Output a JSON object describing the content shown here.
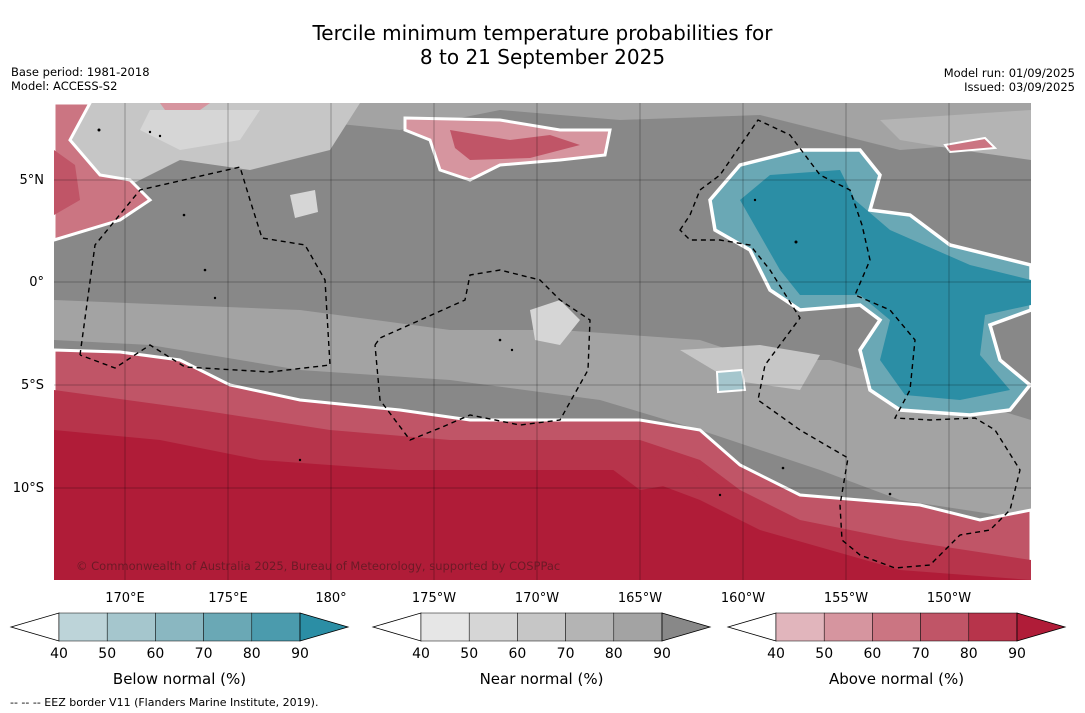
{
  "title_line1": "Tercile minimum temperature probabilities for",
  "title_line2": "8 to 21 September 2025",
  "meta_left": {
    "base_period": "Base period: 1981-2018",
    "model": "Model: ACCESS-S2"
  },
  "meta_right": {
    "model_run": "Model run: 01/09/2025",
    "issued": "Issued: 03/09/2025"
  },
  "lat_ticks": [
    "5°N",
    "0°",
    "5°S",
    "10°S"
  ],
  "lon_ticks": [
    "170°E",
    "175°E",
    "180°",
    "175°W",
    "170°W",
    "165°W",
    "160°W",
    "155°W",
    "150°W"
  ],
  "copyright": "© Commonwealth of Australia 2025, Bureau of Meteorology, supported by COSPPac",
  "colorbars": [
    {
      "label": "Below normal (%)",
      "ticks": [
        "40",
        "50",
        "60",
        "70",
        "80",
        "90"
      ],
      "colors": [
        "#ffffff",
        "#bdd4d9",
        "#a5c6cd",
        "#8ab7c1",
        "#6aa8b5",
        "#4b9bad",
        "#2b8ea5"
      ]
    },
    {
      "label": "Near normal (%)",
      "ticks": [
        "40",
        "50",
        "60",
        "70",
        "80",
        "90"
      ],
      "colors": [
        "#ffffff",
        "#e6e6e6",
        "#d6d6d6",
        "#c6c6c6",
        "#b4b4b4",
        "#a3a3a3",
        "#888888"
      ]
    },
    {
      "label": "Above normal (%)",
      "ticks": [
        "40",
        "50",
        "60",
        "70",
        "80",
        "90"
      ],
      "colors": [
        "#ffffff",
        "#e1b5bc",
        "#d6959f",
        "#cb7582",
        "#c05567",
        "#b7344b",
        "#b01c38"
      ]
    }
  ],
  "footnote": "--  --  -- EEZ border V11 (Flanders Marine Institute, 2019)."
}
